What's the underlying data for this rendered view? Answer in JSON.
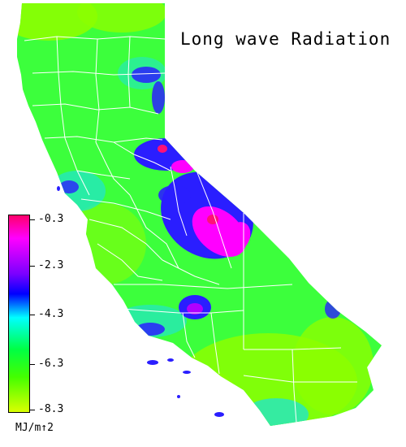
{
  "title": "Long wave Radiation",
  "legend": {
    "ticks": [
      "-0.3",
      "-2.3",
      "-4.3",
      "-6.3",
      "-8.3"
    ],
    "units": "MJ/m↑2",
    "colors": [
      "#ff0066",
      "#ff00ff",
      "#7a00ff",
      "#0000ff",
      "#00ffff",
      "#00ff44",
      "#44ff00",
      "#ddff00"
    ]
  },
  "map_colors": {
    "land_base": "#3cff3c",
    "lime": "#8cff00",
    "cyan": "#22e6c8",
    "blue": "#2a1eff",
    "magenta": "#ff00ff",
    "red": "#ff1177",
    "boundaries": "#ffffff"
  }
}
